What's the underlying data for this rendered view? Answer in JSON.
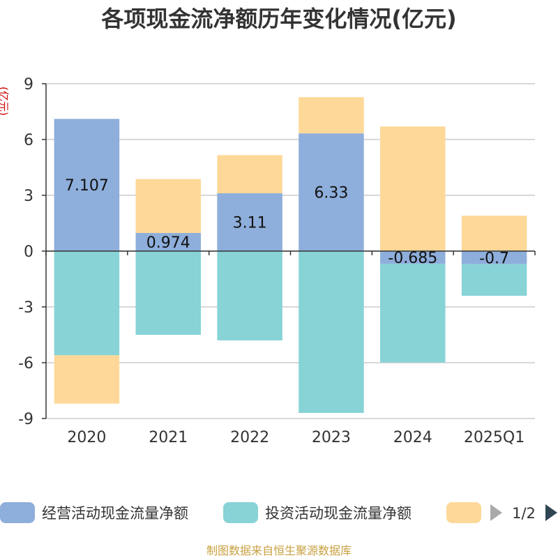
{
  "chart_data": {
    "type": "bar",
    "stacked": true,
    "title": "各项现金流净额历年变化情况(亿元)",
    "ylabel": "(亿元)",
    "categories": [
      "2020",
      "2021",
      "2022",
      "2023",
      "2024",
      "2025Q1"
    ],
    "ylim": [
      -9,
      9
    ],
    "yticks": [
      "9",
      "6",
      "3",
      "0",
      "-3",
      "-6",
      "-9"
    ],
    "grid": true,
    "legend_position": "bottom",
    "series": [
      {
        "name": "经营活动现金流量净额",
        "color": "#8eaedb",
        "values": [
          7.107,
          0.974,
          3.11,
          6.33,
          -0.685,
          -0.7
        ],
        "labels": [
          "7.107",
          "0.974",
          "3.11",
          "6.33",
          "-0.685",
          "-0.7"
        ]
      },
      {
        "name": "投资活动现金流量净额",
        "color": "#87d3d6",
        "values": [
          -5.6,
          -4.5,
          -4.8,
          -8.7,
          -5.3,
          -1.7
        ]
      },
      {
        "name": "",
        "color": "#fdd898",
        "values": [
          -2.6,
          2.9,
          2.05,
          1.95,
          6.7,
          1.9
        ]
      }
    ]
  },
  "legend": {
    "pager": "1/2",
    "prev_icon": "triangle-left-icon",
    "next_icon": "triangle-right-icon"
  },
  "footer": {
    "source": "制图数据来自恒生聚源数据库"
  }
}
